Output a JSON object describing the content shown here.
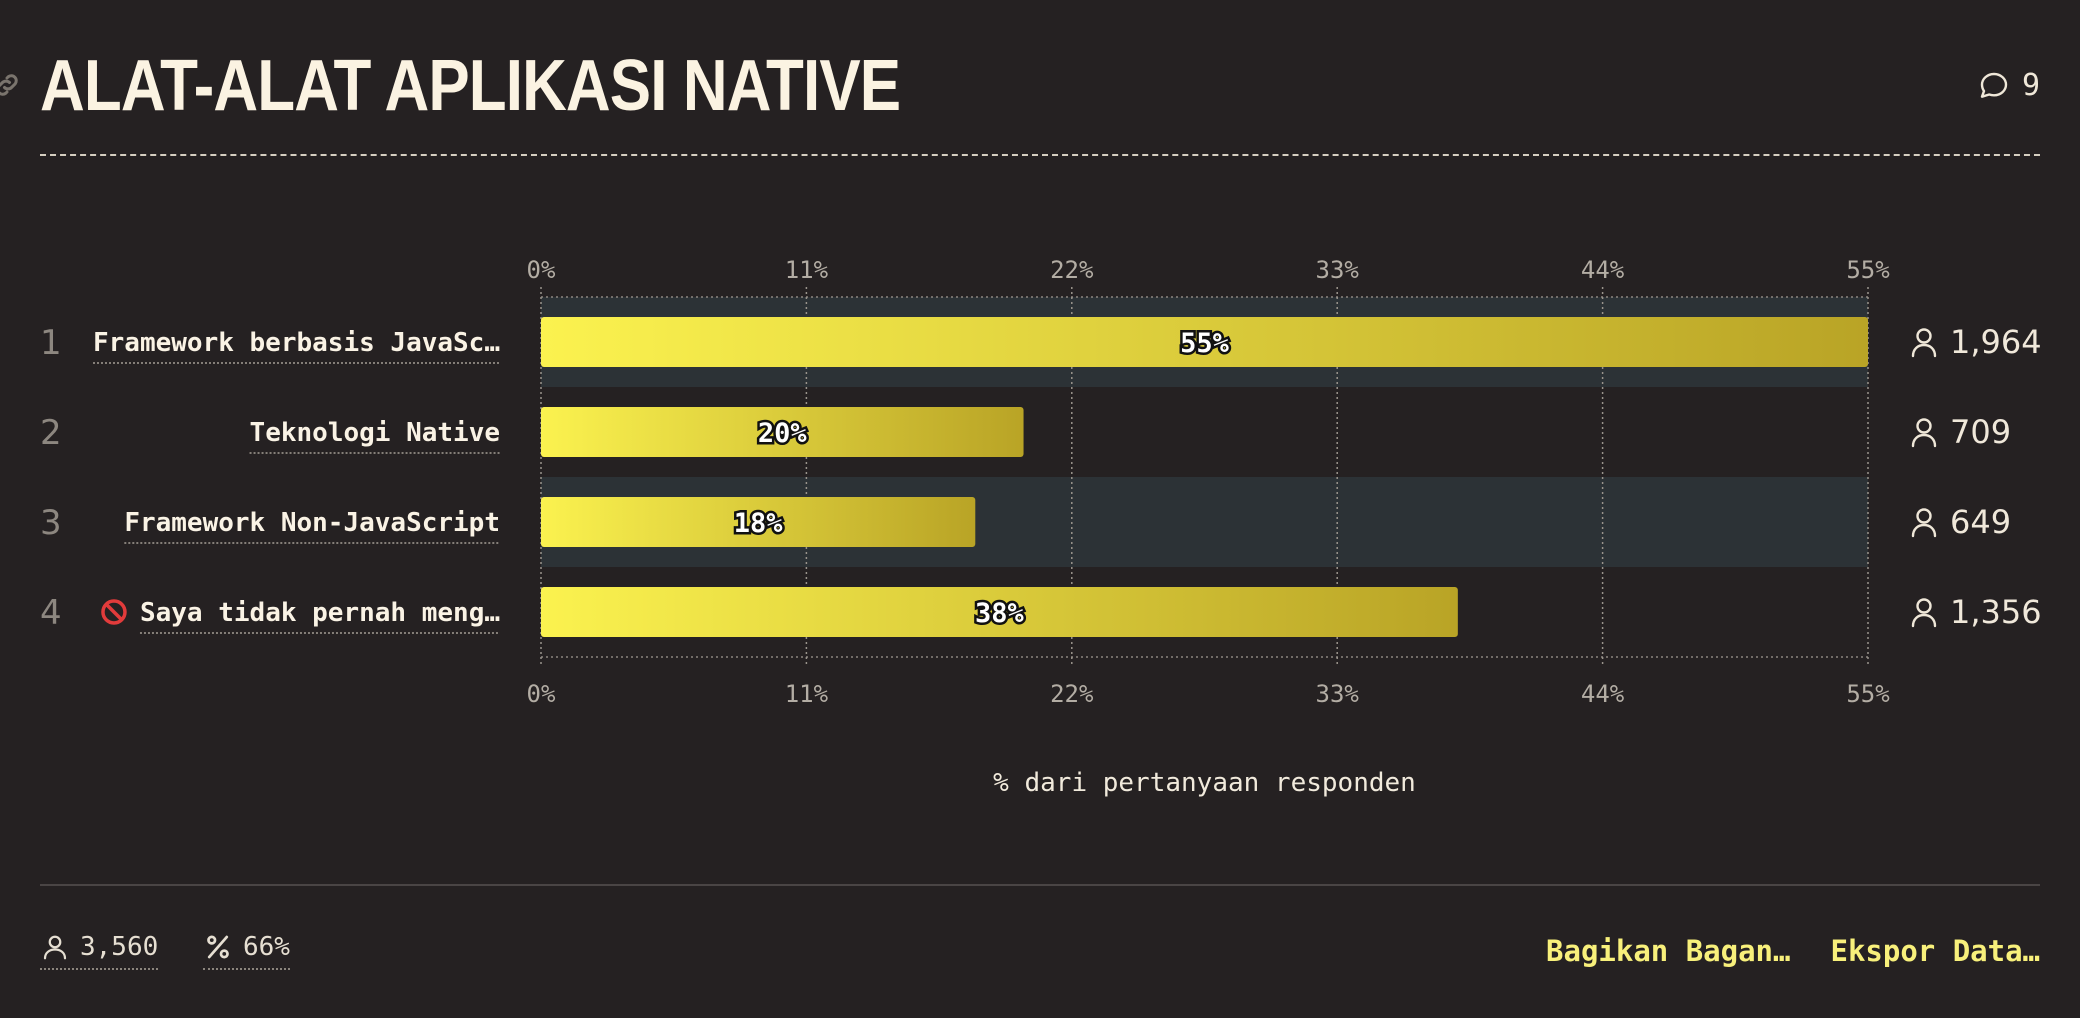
{
  "header": {
    "title": "ALAT-ALAT APLIKASI NATIVE",
    "comment_count": "9"
  },
  "chart_data": {
    "type": "bar",
    "orientation": "horizontal",
    "categories": [
      "Framework berbasis JavaSc…",
      "Teknologi Native",
      "Framework Non-JavaScript",
      "Saya tidak pernah meng…"
    ],
    "ranks": [
      "1",
      "2",
      "3",
      "4"
    ],
    "values": [
      55,
      20,
      18,
      38
    ],
    "value_labels": [
      "55%",
      "20%",
      "18%",
      "38%"
    ],
    "counts": [
      "1,964",
      "709",
      "649",
      "1,356"
    ],
    "xticks": [
      "0%",
      "11%",
      "22%",
      "33%",
      "44%",
      "55%"
    ],
    "xtick_values": [
      0,
      11,
      22,
      33,
      44,
      55
    ],
    "xlim": [
      0,
      55
    ],
    "xlabel": "% dari pertanyaan responden",
    "grid": true,
    "colors": {
      "bar_start": "#fbf24f",
      "bar_end": "#b9a426",
      "row_band": "#2c3236"
    }
  },
  "footer": {
    "respondents": "3,560",
    "percentage": "66%",
    "share_label": "Bagikan Bagan…",
    "export_label": "Ekspor Data…"
  }
}
